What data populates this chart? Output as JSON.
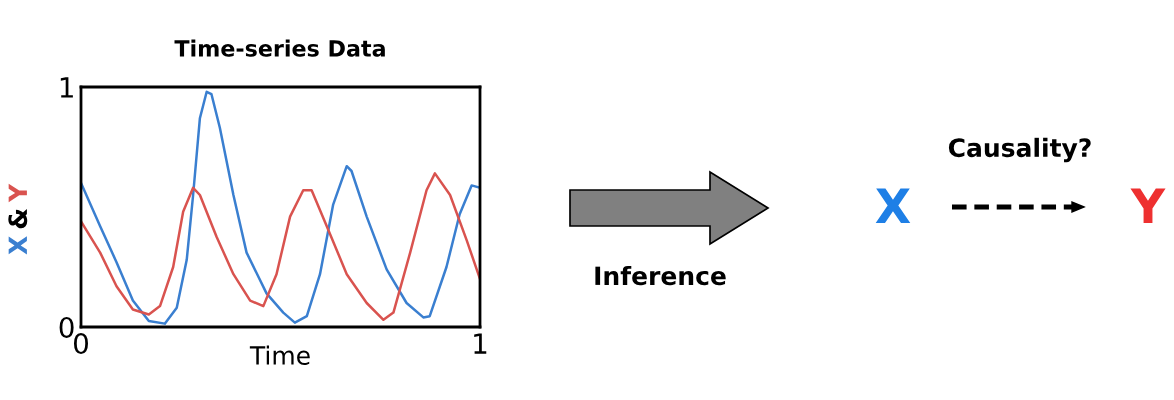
{
  "chart_data": [
    {
      "type": "line",
      "title": "Time-series Data",
      "xlabel": "Time",
      "ylabel": "X & Y",
      "xlim": [
        0,
        1
      ],
      "ylim": [
        0,
        1
      ],
      "xticks": [
        0,
        1
      ],
      "yticks": [
        0,
        1
      ],
      "marker": "none",
      "line_style": "solid",
      "series": [
        {
          "color": "#3a7fd0",
          "x": [
            0,
            0.048,
            0.089,
            0.13,
            0.17,
            0.21,
            0.24,
            0.265,
            0.281,
            0.298,
            0.315,
            0.327,
            0.348,
            0.382,
            0.415,
            0.465,
            0.507,
            0.536,
            0.566,
            0.599,
            0.632,
            0.666,
            0.678,
            0.716,
            0.766,
            0.816,
            0.858,
            0.874,
            0.916,
            0.949,
            0.979,
            1.0
          ],
          "values": [
            0.6,
            0.42,
            0.27,
            0.11,
            0.025,
            0.014,
            0.08,
            0.28,
            0.55,
            0.87,
            0.98,
            0.97,
            0.83,
            0.55,
            0.31,
            0.14,
            0.06,
            0.018,
            0.045,
            0.22,
            0.51,
            0.67,
            0.65,
            0.46,
            0.24,
            0.1,
            0.04,
            0.045,
            0.25,
            0.47,
            0.59,
            0.58
          ]
        },
        {
          "color": "#d9534f",
          "x": [
            0,
            0.048,
            0.089,
            0.13,
            0.17,
            0.198,
            0.231,
            0.256,
            0.281,
            0.298,
            0.34,
            0.382,
            0.424,
            0.457,
            0.49,
            0.524,
            0.557,
            0.578,
            0.616,
            0.666,
            0.716,
            0.758,
            0.783,
            0.825,
            0.866,
            0.887,
            0.925,
            0.967,
            1.0
          ],
          "values": [
            0.44,
            0.31,
            0.17,
            0.073,
            0.052,
            0.087,
            0.25,
            0.48,
            0.58,
            0.55,
            0.375,
            0.22,
            0.11,
            0.087,
            0.22,
            0.46,
            0.57,
            0.57,
            0.42,
            0.22,
            0.1,
            0.03,
            0.06,
            0.31,
            0.57,
            0.64,
            0.55,
            0.36,
            0.2
          ]
        }
      ]
    },
    {
      "type": "other",
      "annotations": [
        "Inference",
        "Causality?",
        "X",
        "Y"
      ],
      "colors": [
        "#000000",
        "#000000",
        "#1e7fe6",
        "#ee3030"
      ]
    }
  ]
}
